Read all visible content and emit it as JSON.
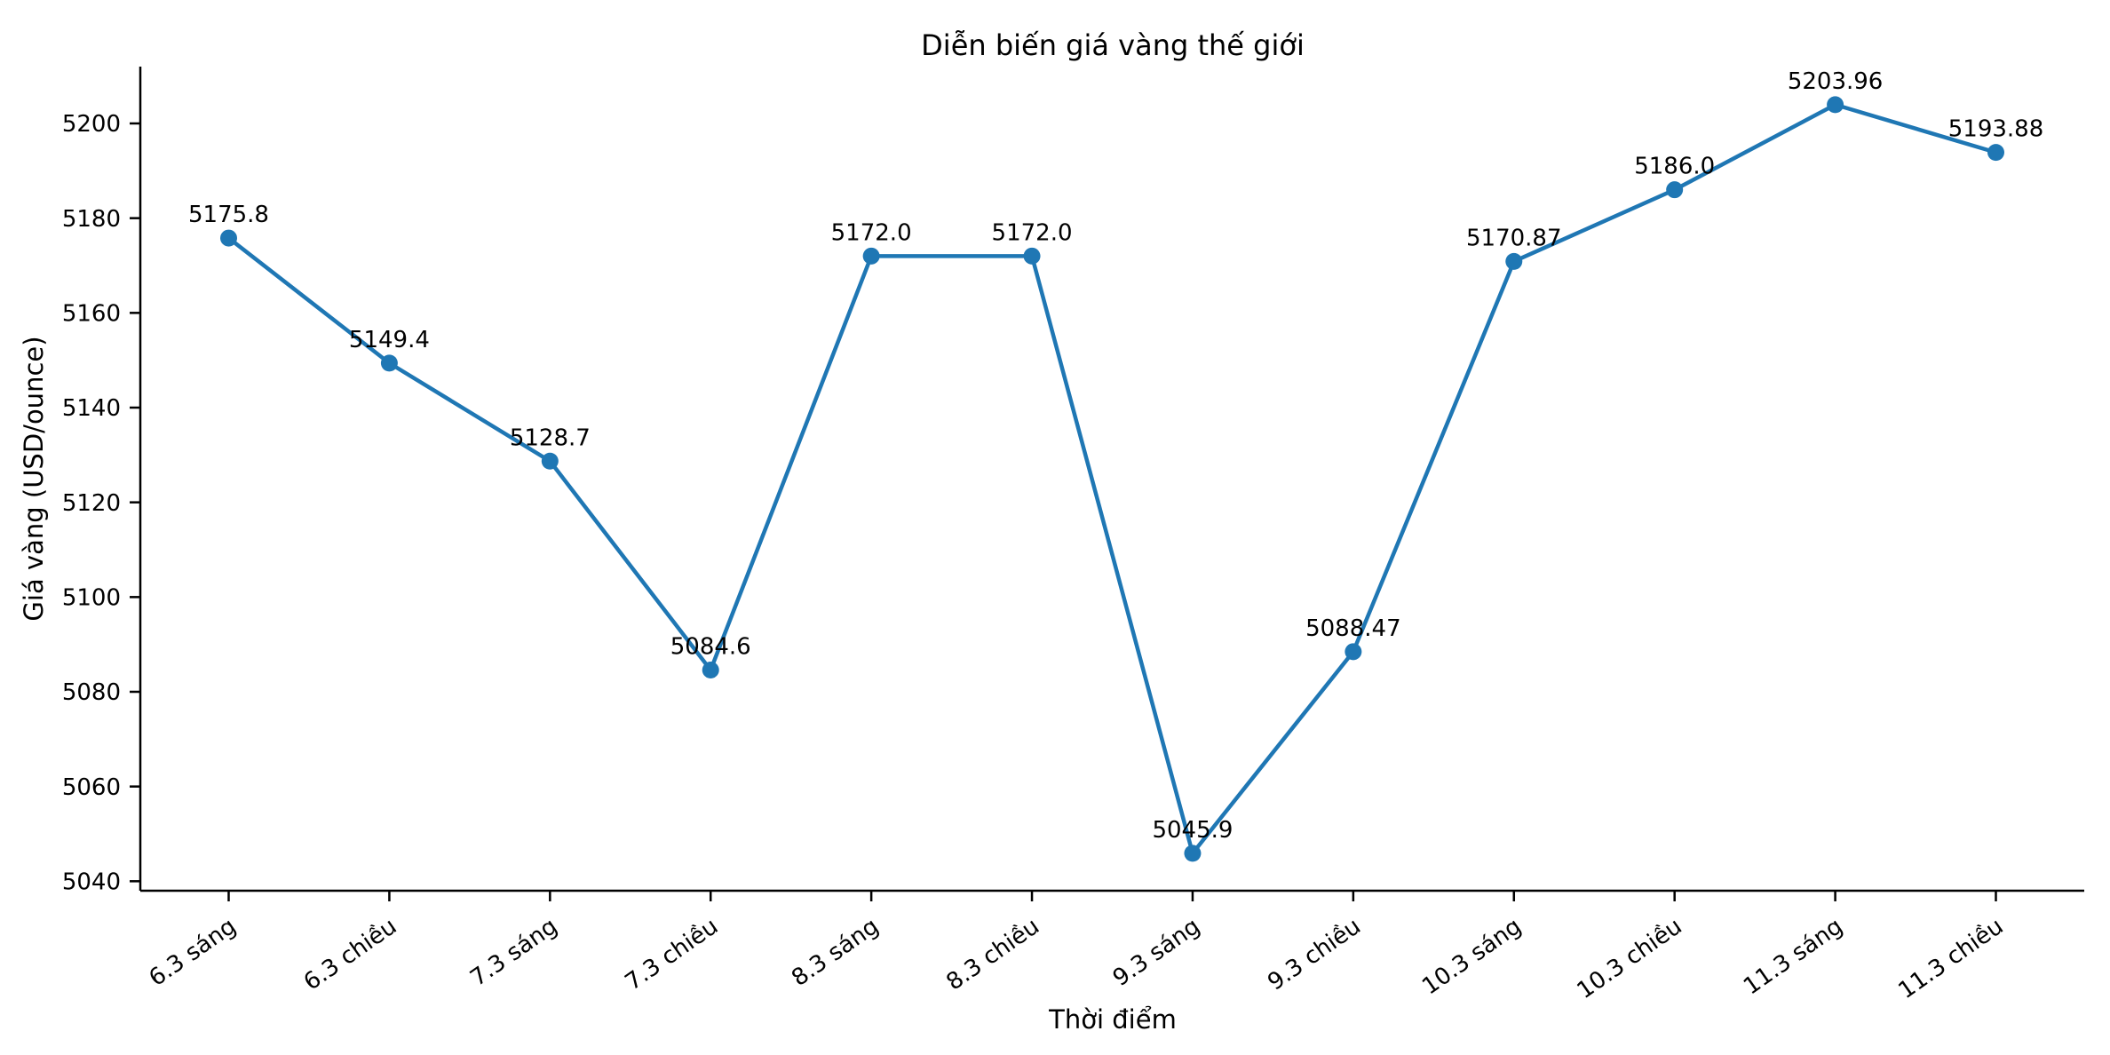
{
  "chart_data": {
    "type": "line",
    "title": "Diễn biến giá vàng thế giới",
    "xlabel": "Thời điểm",
    "ylabel": "Giá vàng (USD/ounce)",
    "categories": [
      "6.3 sáng",
      "6.3 chiều",
      "7.3 sáng",
      "7.3 chiều",
      "8.3 sáng",
      "8.3 chiều",
      "9.3 sáng",
      "9.3 chiều",
      "10.3 sáng",
      "10.3 chiều",
      "11.3 sáng",
      "11.3 chiều"
    ],
    "series": [
      {
        "name": "Giá vàng (USD/ounce)",
        "values": [
          5175.8,
          5149.4,
          5128.7,
          5084.6,
          5172.0,
          5172.0,
          5045.9,
          5088.47,
          5170.87,
          5186.0,
          5203.96,
          5193.88
        ]
      }
    ],
    "point_labels": [
      "5175.8",
      "5149.4",
      "5128.7",
      "5084.6",
      "5172.0",
      "5172.0",
      "5045.9",
      "5088.47",
      "5170.87",
      "5186.0",
      "5203.96",
      "5193.88"
    ],
    "y_ticks": [
      5040,
      5060,
      5080,
      5100,
      5120,
      5140,
      5160,
      5180,
      5200
    ],
    "ylim": [
      5038,
      5212
    ],
    "grid": false,
    "legend": "none",
    "line_color": "#1f77b4",
    "marker": "circle",
    "x_tick_rotation_deg": 35
  }
}
